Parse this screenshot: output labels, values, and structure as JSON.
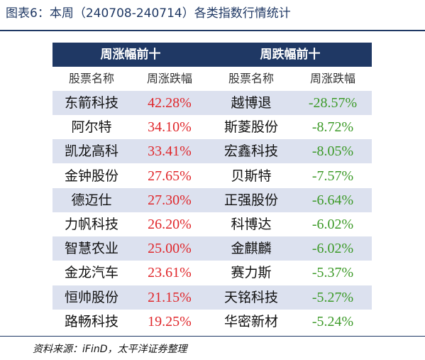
{
  "figure": {
    "title": "图表6：本周（240708-240714）各类指数行情统计",
    "source": "资料来源：iFinD，太平洋证券整理"
  },
  "table": {
    "headers": {
      "gainers": "周涨幅前十",
      "losers": "周跌幅前十"
    },
    "subheaders": {
      "gainer_name": "股票名称",
      "gainer_change": "周涨跌幅",
      "loser_name": "股票名称",
      "loser_change": "周涨跌幅"
    },
    "rows": [
      {
        "gainer": "东箭科技",
        "gainer_change": "42.28%",
        "loser": "越博退",
        "loser_change": "-28.57%"
      },
      {
        "gainer": "阿尔特",
        "gainer_change": "34.10%",
        "loser": "斯菱股份",
        "loser_change": "-8.72%"
      },
      {
        "gainer": "凯龙高科",
        "gainer_change": "33.41%",
        "loser": "宏鑫科技",
        "loser_change": "-8.05%"
      },
      {
        "gainer": "金钟股份",
        "gainer_change": "27.65%",
        "loser": "贝斯特",
        "loser_change": "-7.57%"
      },
      {
        "gainer": "德迈仕",
        "gainer_change": "27.30%",
        "loser": "正强股份",
        "loser_change": "-6.64%"
      },
      {
        "gainer": "力帆科技",
        "gainer_change": "26.20%",
        "loser": "科博达",
        "loser_change": "-6.02%"
      },
      {
        "gainer": "智慧农业",
        "gainer_change": "25.00%",
        "loser": "金麒麟",
        "loser_change": "-6.02%"
      },
      {
        "gainer": "金龙汽车",
        "gainer_change": "23.61%",
        "loser": "赛力斯",
        "loser_change": "-5.37%"
      },
      {
        "gainer": "恒帅股份",
        "gainer_change": "21.15%",
        "loser": "天铭科技",
        "loser_change": "-5.27%"
      },
      {
        "gainer": "路畅科技",
        "gainer_change": "19.25%",
        "loser": "华密新材",
        "loser_change": "-5.24%"
      }
    ]
  },
  "colors": {
    "header_bg": "#1f3864",
    "row_shade": "#dce1ef",
    "gain": "#e0262a",
    "loss": "#3c9a28"
  }
}
